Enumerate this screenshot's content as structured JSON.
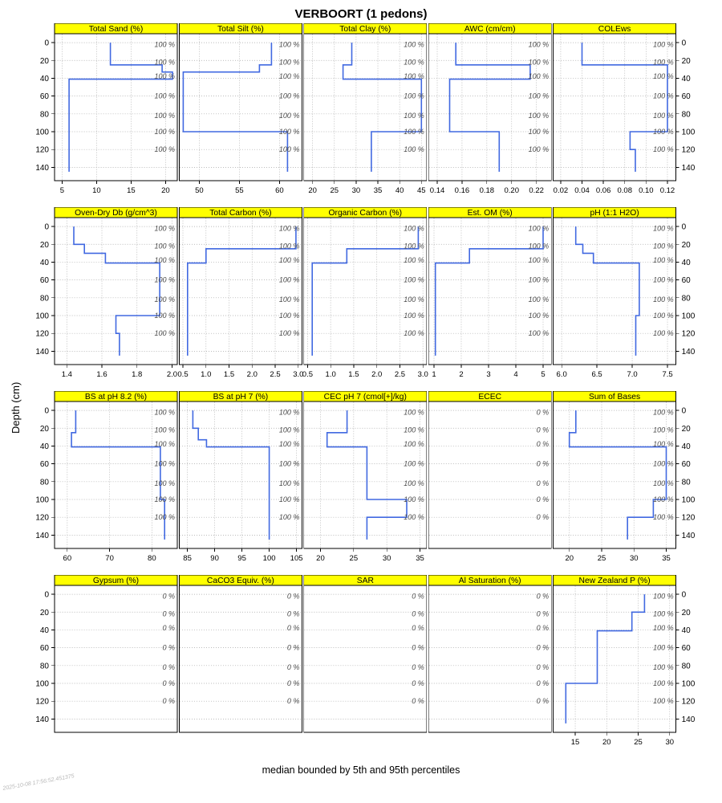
{
  "title": "VERBOORT (1 pedons)",
  "caption": "median bounded by 5th and 95th percentiles",
  "ylabel": "Depth (cm)",
  "timestamp": "2025-10-08 17:56:52.451375",
  "colors": {
    "line": "#4169E1",
    "strip": "#FFFF00",
    "grid": "#A6A6A6",
    "pct": "#4D4D4D"
  },
  "chart_data": {
    "type": "line",
    "title": "VERBOORT (1 pedons)",
    "xlabel": "",
    "ylabel": "Depth (cm)",
    "depth_ticks": [
      0,
      20,
      40,
      60,
      80,
      100,
      120,
      140
    ],
    "depth_range": [
      -10,
      155
    ],
    "label_depths": [
      2,
      22,
      38,
      60,
      82,
      100,
      120
    ],
    "rows": [
      {
        "panels": [
          {
            "title": "Total Sand (%)",
            "xlim": [
              3.9,
              21.7
            ],
            "xticks": [
              5,
              10,
              15,
              20
            ],
            "xtick_labels": [
              "5",
              "10",
              "15",
              "20"
            ],
            "pct": "100 %",
            "segments": [
              [
                0,
                25,
                12
              ],
              [
                25,
                33,
                19.5
              ],
              [
                33,
                41,
                21
              ],
              [
                41,
                145,
                6
              ]
            ]
          },
          {
            "title": "Total Silt (%)",
            "xlim": [
              47.5,
              62.8
            ],
            "xticks": [
              50,
              55,
              60
            ],
            "xtick_labels": [
              "50",
              "55",
              "60"
            ],
            "pct": "100 %",
            "segments": [
              [
                0,
                25,
                59
              ],
              [
                25,
                33,
                57.5
              ],
              [
                33,
                100,
                48
              ],
              [
                100,
                145,
                61
              ]
            ]
          },
          {
            "title": "Total Clay (%)",
            "xlim": [
              18,
              46.2
            ],
            "xticks": [
              20,
              25,
              30,
              35,
              40,
              45
            ],
            "xtick_labels": [
              "20",
              "25",
              "30",
              "35",
              "40",
              "45"
            ],
            "pct": "100 %",
            "segments": [
              [
                0,
                25,
                29
              ],
              [
                25,
                41,
                27
              ],
              [
                41,
                100,
                45
              ],
              [
                100,
                145,
                33.5
              ]
            ]
          },
          {
            "title": "AWC (cm/cm)",
            "xlim": [
              0.133,
              0.232
            ],
            "xticks": [
              0.14,
              0.16,
              0.18,
              0.2,
              0.22
            ],
            "xtick_labels": [
              "0.14",
              "0.16",
              "0.18",
              "0.20",
              "0.22"
            ],
            "pct": "100 %",
            "segments": [
              [
                0,
                25,
                0.155
              ],
              [
                25,
                41,
                0.215
              ],
              [
                41,
                100,
                0.15
              ],
              [
                100,
                145,
                0.19
              ]
            ]
          },
          {
            "title": "COLEws",
            "xlim": [
              0.013,
              0.128
            ],
            "xticks": [
              0.02,
              0.04,
              0.06,
              0.08,
              0.1,
              0.12
            ],
            "xtick_labels": [
              "0.02",
              "0.04",
              "0.06",
              "0.08",
              "0.10",
              "0.12"
            ],
            "pct": "100 %",
            "segments": [
              [
                0,
                25,
                0.04
              ],
              [
                25,
                100,
                0.12
              ],
              [
                100,
                120,
                0.085
              ],
              [
                120,
                145,
                0.09
              ]
            ]
          }
        ]
      },
      {
        "panels": [
          {
            "title": "Oven-Dry Db (g/cm^3)",
            "xlim": [
              1.33,
              2.03
            ],
            "xticks": [
              1.4,
              1.6,
              1.8,
              2
            ],
            "xtick_labels": [
              "1.4",
              "1.6",
              "1.8",
              "2.0"
            ],
            "pct": "100 %",
            "segments": [
              [
                0,
                20,
                1.44
              ],
              [
                20,
                30,
                1.5
              ],
              [
                30,
                41,
                1.62
              ],
              [
                41,
                100,
                1.93
              ],
              [
                100,
                120,
                1.68
              ],
              [
                120,
                145,
                1.7
              ]
            ]
          },
          {
            "title": "Total Carbon (%)",
            "xlim": [
              0.42,
              3.08
            ],
            "xticks": [
              0.5,
              1,
              1.5,
              2,
              2.5,
              3
            ],
            "xtick_labels": [
              "0.5",
              "1.0",
              "1.5",
              "2.0",
              "2.5",
              "3.0"
            ],
            "pct": "100 %",
            "segments": [
              [
                0,
                25,
                2.95
              ],
              [
                25,
                41,
                1.0
              ],
              [
                41,
                145,
                0.6
              ]
            ]
          },
          {
            "title": "Organic Carbon (%)",
            "xlim": [
              0.42,
              3.08
            ],
            "xticks": [
              0.5,
              1,
              1.5,
              2,
              2.5,
              3
            ],
            "xtick_labels": [
              "0.5",
              "1.0",
              "1.5",
              "2.0",
              "2.5",
              "3.0"
            ],
            "pct": "100 %",
            "segments": [
              [
                0,
                25,
                2.9
              ],
              [
                25,
                41,
                1.35
              ],
              [
                41,
                145,
                0.6
              ]
            ]
          },
          {
            "title": "Est. OM (%)",
            "xlim": [
              0.8,
              5.3
            ],
            "xticks": [
              1,
              2,
              3,
              4,
              5
            ],
            "xtick_labels": [
              "1",
              "2",
              "3",
              "4",
              "5"
            ],
            "pct": "100 %",
            "segments": [
              [
                0,
                25,
                5.0
              ],
              [
                25,
                41,
                2.3
              ],
              [
                41,
                145,
                1.05
              ]
            ]
          },
          {
            "title": "pH (1:1 H2O)",
            "xlim": [
              5.88,
              7.62
            ],
            "xticks": [
              6,
              6.5,
              7,
              7.5
            ],
            "xtick_labels": [
              "6.0",
              "6.5",
              "7.0",
              "7.5"
            ],
            "pct": "100 %",
            "segments": [
              [
                0,
                20,
                6.2
              ],
              [
                20,
                30,
                6.3
              ],
              [
                30,
                41,
                6.45
              ],
              [
                41,
                100,
                7.1
              ],
              [
                100,
                145,
                7.05
              ]
            ]
          }
        ]
      },
      {
        "panels": [
          {
            "title": "BS at pH 8.2 (%)",
            "xlim": [
              57,
              86
            ],
            "xticks": [
              60,
              70,
              80
            ],
            "xtick_labels": [
              "60",
              "70",
              "80"
            ],
            "pct": "100 %",
            "segments": [
              [
                0,
                25,
                62
              ],
              [
                25,
                41,
                61
              ],
              [
                41,
                100,
                82
              ],
              [
                100,
                145,
                83
              ]
            ]
          },
          {
            "title": "BS at pH 7 (%)",
            "xlim": [
              83.5,
              106
            ],
            "xticks": [
              85,
              90,
              95,
              100,
              105
            ],
            "xtick_labels": [
              "85",
              "90",
              "95",
              "100",
              "105"
            ],
            "pct": "100 %",
            "segments": [
              [
                0,
                20,
                86
              ],
              [
                20,
                33,
                87
              ],
              [
                33,
                41,
                88.5
              ],
              [
                41,
                145,
                100
              ]
            ]
          },
          {
            "title": "CEC pH 7 (cmol[+]/kg)",
            "xlim": [
              17.5,
              36
            ],
            "xticks": [
              20,
              25,
              30,
              35
            ],
            "xtick_labels": [
              "20",
              "25",
              "30",
              "35"
            ],
            "pct": "100 %",
            "segments": [
              [
                0,
                25,
                24
              ],
              [
                25,
                41,
                21
              ],
              [
                41,
                100,
                27
              ],
              [
                100,
                120,
                33
              ],
              [
                120,
                145,
                27
              ]
            ]
          },
          {
            "title": "ECEC",
            "xlim": [
              0,
              1
            ],
            "xticks": [],
            "xtick_labels": [],
            "pct": "0 %",
            "segments": []
          },
          {
            "title": "Sum of Bases",
            "xlim": [
              17.5,
              36.5
            ],
            "xticks": [
              20,
              25,
              30,
              35
            ],
            "xtick_labels": [
              "20",
              "25",
              "30",
              "35"
            ],
            "pct": "100 %",
            "segments": [
              [
                0,
                25,
                21
              ],
              [
                25,
                41,
                20
              ],
              [
                41,
                100,
                35
              ],
              [
                100,
                120,
                33
              ],
              [
                120,
                145,
                29
              ]
            ]
          }
        ]
      },
      {
        "panels": [
          {
            "title": "Gypsum (%)",
            "xlim": [
              0,
              1
            ],
            "xticks": [],
            "xtick_labels": [],
            "pct": "0 %",
            "segments": []
          },
          {
            "title": "CaCO3 Equiv. (%)",
            "xlim": [
              0,
              1
            ],
            "xticks": [],
            "xtick_labels": [],
            "pct": "0 %",
            "segments": []
          },
          {
            "title": "SAR",
            "xlim": [
              0,
              1
            ],
            "xticks": [],
            "xtick_labels": [],
            "pct": "0 %",
            "segments": []
          },
          {
            "title": "Al Saturation (%)",
            "xlim": [
              0,
              1
            ],
            "xticks": [],
            "xtick_labels": [],
            "pct": "0 %",
            "segments": []
          },
          {
            "title": "New Zealand P (%)",
            "xlim": [
              11.5,
              31
            ],
            "xticks": [
              15,
              20,
              25,
              30
            ],
            "xtick_labels": [
              "15",
              "20",
              "25",
              "30"
            ],
            "pct": "100 %",
            "segments": [
              [
                0,
                20,
                26
              ],
              [
                20,
                41,
                24
              ],
              [
                41,
                100,
                18.5
              ],
              [
                100,
                145,
                13.5
              ]
            ]
          }
        ]
      }
    ]
  }
}
